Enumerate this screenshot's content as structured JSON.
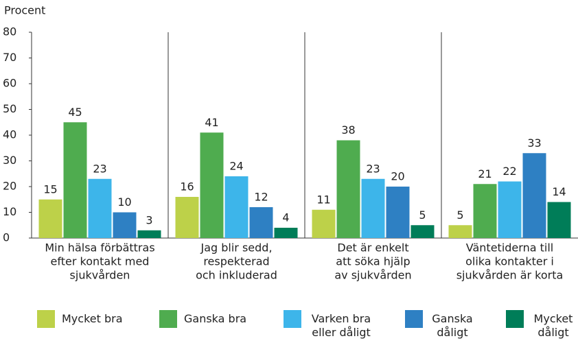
{
  "chart_data": {
    "type": "bar",
    "y_label": "Procent",
    "categories": [
      [
        "Min hälsa förbättras",
        "efter kontakt med",
        "sjukvården"
      ],
      [
        "Jag blir sedd,",
        "respekterad",
        "och inkluderad"
      ],
      [
        "Det är enkelt",
        "att söka hjälp",
        "av sjukvården"
      ],
      [
        "Väntetiderna till",
        "olika kontakter i",
        "sjukvården är korta"
      ]
    ],
    "series": [
      {
        "name": "Mycket bra",
        "color": "#bdd149",
        "values": [
          15,
          16,
          11,
          5
        ]
      },
      {
        "name": "Ganska bra",
        "color": "#4fac4f",
        "values": [
          45,
          41,
          38,
          21
        ]
      },
      {
        "name": "Varken bra eller dåligt",
        "color": "#3db5ea",
        "values": [
          23,
          24,
          23,
          22
        ]
      },
      {
        "name": "Ganska dåligt",
        "color": "#2e80c3",
        "values": [
          10,
          12,
          20,
          33
        ]
      },
      {
        "name": "Mycket dåligt",
        "color": "#007d58",
        "values": [
          3,
          4,
          5,
          14
        ]
      }
    ],
    "ylim": [
      0,
      80
    ],
    "yticks": [
      0,
      10,
      20,
      30,
      40,
      50,
      60,
      70,
      80
    ]
  }
}
